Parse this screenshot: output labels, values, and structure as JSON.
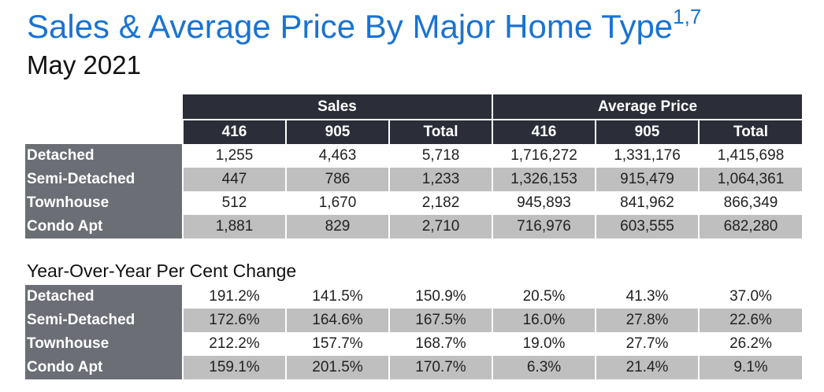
{
  "title": "Sales & Average Price By Major Home Type",
  "title_sup": "1,7",
  "subtitle": "May 2021",
  "main_table": {
    "group_headers": [
      "Sales",
      "Average Price"
    ],
    "column_headers": [
      "416",
      "905",
      "Total",
      "416",
      "905",
      "Total"
    ],
    "rows": [
      {
        "label": "Detached",
        "values": [
          "1,255",
          "4,463",
          "5,718",
          "1,716,272",
          "1,331,176",
          "1,415,698"
        ]
      },
      {
        "label": "Semi-Detached",
        "values": [
          "447",
          "786",
          "1,233",
          "1,326,153",
          "915,479",
          "1,064,361"
        ]
      },
      {
        "label": "Townhouse",
        "values": [
          "512",
          "1,670",
          "2,182",
          "945,893",
          "841,962",
          "866,349"
        ]
      },
      {
        "label": "Condo Apt",
        "values": [
          "1,881",
          "829",
          "2,710",
          "716,976",
          "603,555",
          "682,280"
        ]
      }
    ]
  },
  "yoy_title": "Year-Over-Year Per Cent Change",
  "yoy_table": {
    "rows": [
      {
        "label": "Detached",
        "values": [
          "191.2%",
          "141.5%",
          "150.9%",
          "20.5%",
          "41.3%",
          "37.0%"
        ]
      },
      {
        "label": "Semi-Detached",
        "values": [
          "172.6%",
          "164.6%",
          "167.5%",
          "16.0%",
          "27.8%",
          "22.6%"
        ]
      },
      {
        "label": "Townhouse",
        "values": [
          "212.2%",
          "157.7%",
          "168.7%",
          "19.0%",
          "27.7%",
          "26.2%"
        ]
      },
      {
        "label": "Condo Apt",
        "values": [
          "159.1%",
          "201.5%",
          "170.7%",
          "6.3%",
          "21.4%",
          "9.1%"
        ]
      }
    ]
  },
  "colors": {
    "title": "#1a73d1",
    "header_bg": "#2b2e38",
    "row_label_bg": "#6b6e74",
    "stripe_bg": "#bfbfbf"
  }
}
